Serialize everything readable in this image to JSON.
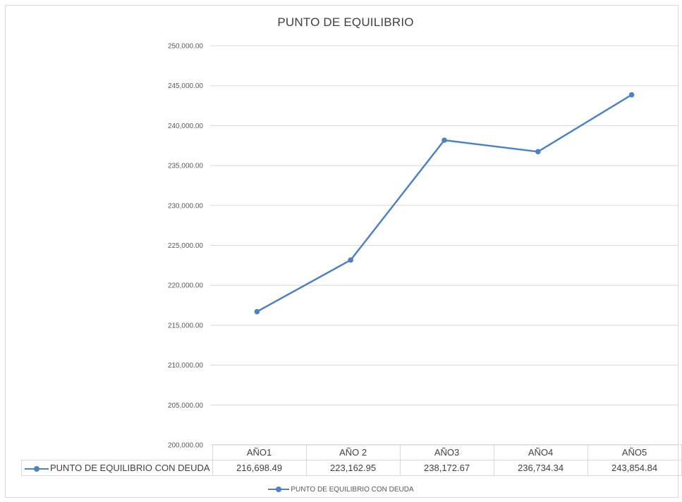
{
  "chart_data": {
    "type": "line",
    "title": "PUNTO DE EQUILIBRIO",
    "categories": [
      "AÑO1",
      "AÑO 2",
      "AÑO3",
      "AÑO4",
      "AÑO5"
    ],
    "series": [
      {
        "name": "PUNTO DE EQUILIBRIO CON DEUDA",
        "values": [
          216698.49,
          223162.95,
          238172.67,
          236734.34,
          243854.84
        ],
        "value_labels": [
          "216,698.49",
          "223,162.95",
          "238,172.67",
          "236,734.34",
          "243,854.84"
        ],
        "color": "#4f81bd"
      }
    ],
    "yticks": [
      "200,000.00",
      "205,000.00",
      "210,000.00",
      "215,000.00",
      "220,000.00",
      "225,000.00",
      "230,000.00",
      "235,000.00",
      "240,000.00",
      "245,000.00",
      "250,000.00"
    ],
    "ylim": [
      200000,
      250000
    ],
    "ytick_step": 5000,
    "grid": true,
    "legend_position": "bottom",
    "data_table": true
  }
}
